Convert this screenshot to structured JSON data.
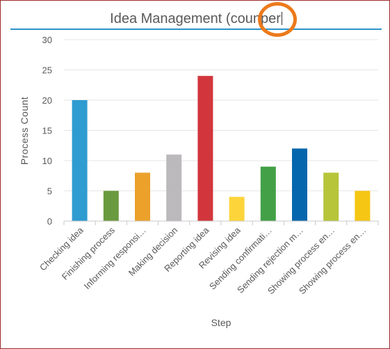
{
  "title_input": {
    "text": "Idea Management (coun",
    "highlight_text": "per"
  },
  "colors": {
    "frame_border": "#9b2c2c",
    "title_underline": "#2a93c9",
    "highlight_ring": "#ec7a1c",
    "axis_text": "#595959",
    "grid": "#e6e6e6"
  },
  "chart_data": {
    "type": "bar",
    "title": "",
    "xlabel": "Step",
    "ylabel": "Process Count",
    "ylim": [
      0,
      30
    ],
    "yticks": [
      0,
      5,
      10,
      15,
      20,
      25,
      30
    ],
    "grid": true,
    "categories": [
      "Checking idea",
      "Finishing process",
      "Informing responsi…",
      "Making decision",
      "Reporting idea",
      "Revising idea",
      "Sending confirmati…",
      "Sending rejection m…",
      "Showing process en…",
      "Showing process en…"
    ],
    "values": [
      20,
      5,
      8,
      11,
      24,
      4,
      9,
      12,
      8,
      5
    ],
    "bar_colors": [
      "#2e9bd1",
      "#6a9a3f",
      "#eba12a",
      "#bcb9bc",
      "#d2363c",
      "#fdd43a",
      "#43a047",
      "#0666ad",
      "#b6c53a",
      "#f6c614"
    ]
  }
}
